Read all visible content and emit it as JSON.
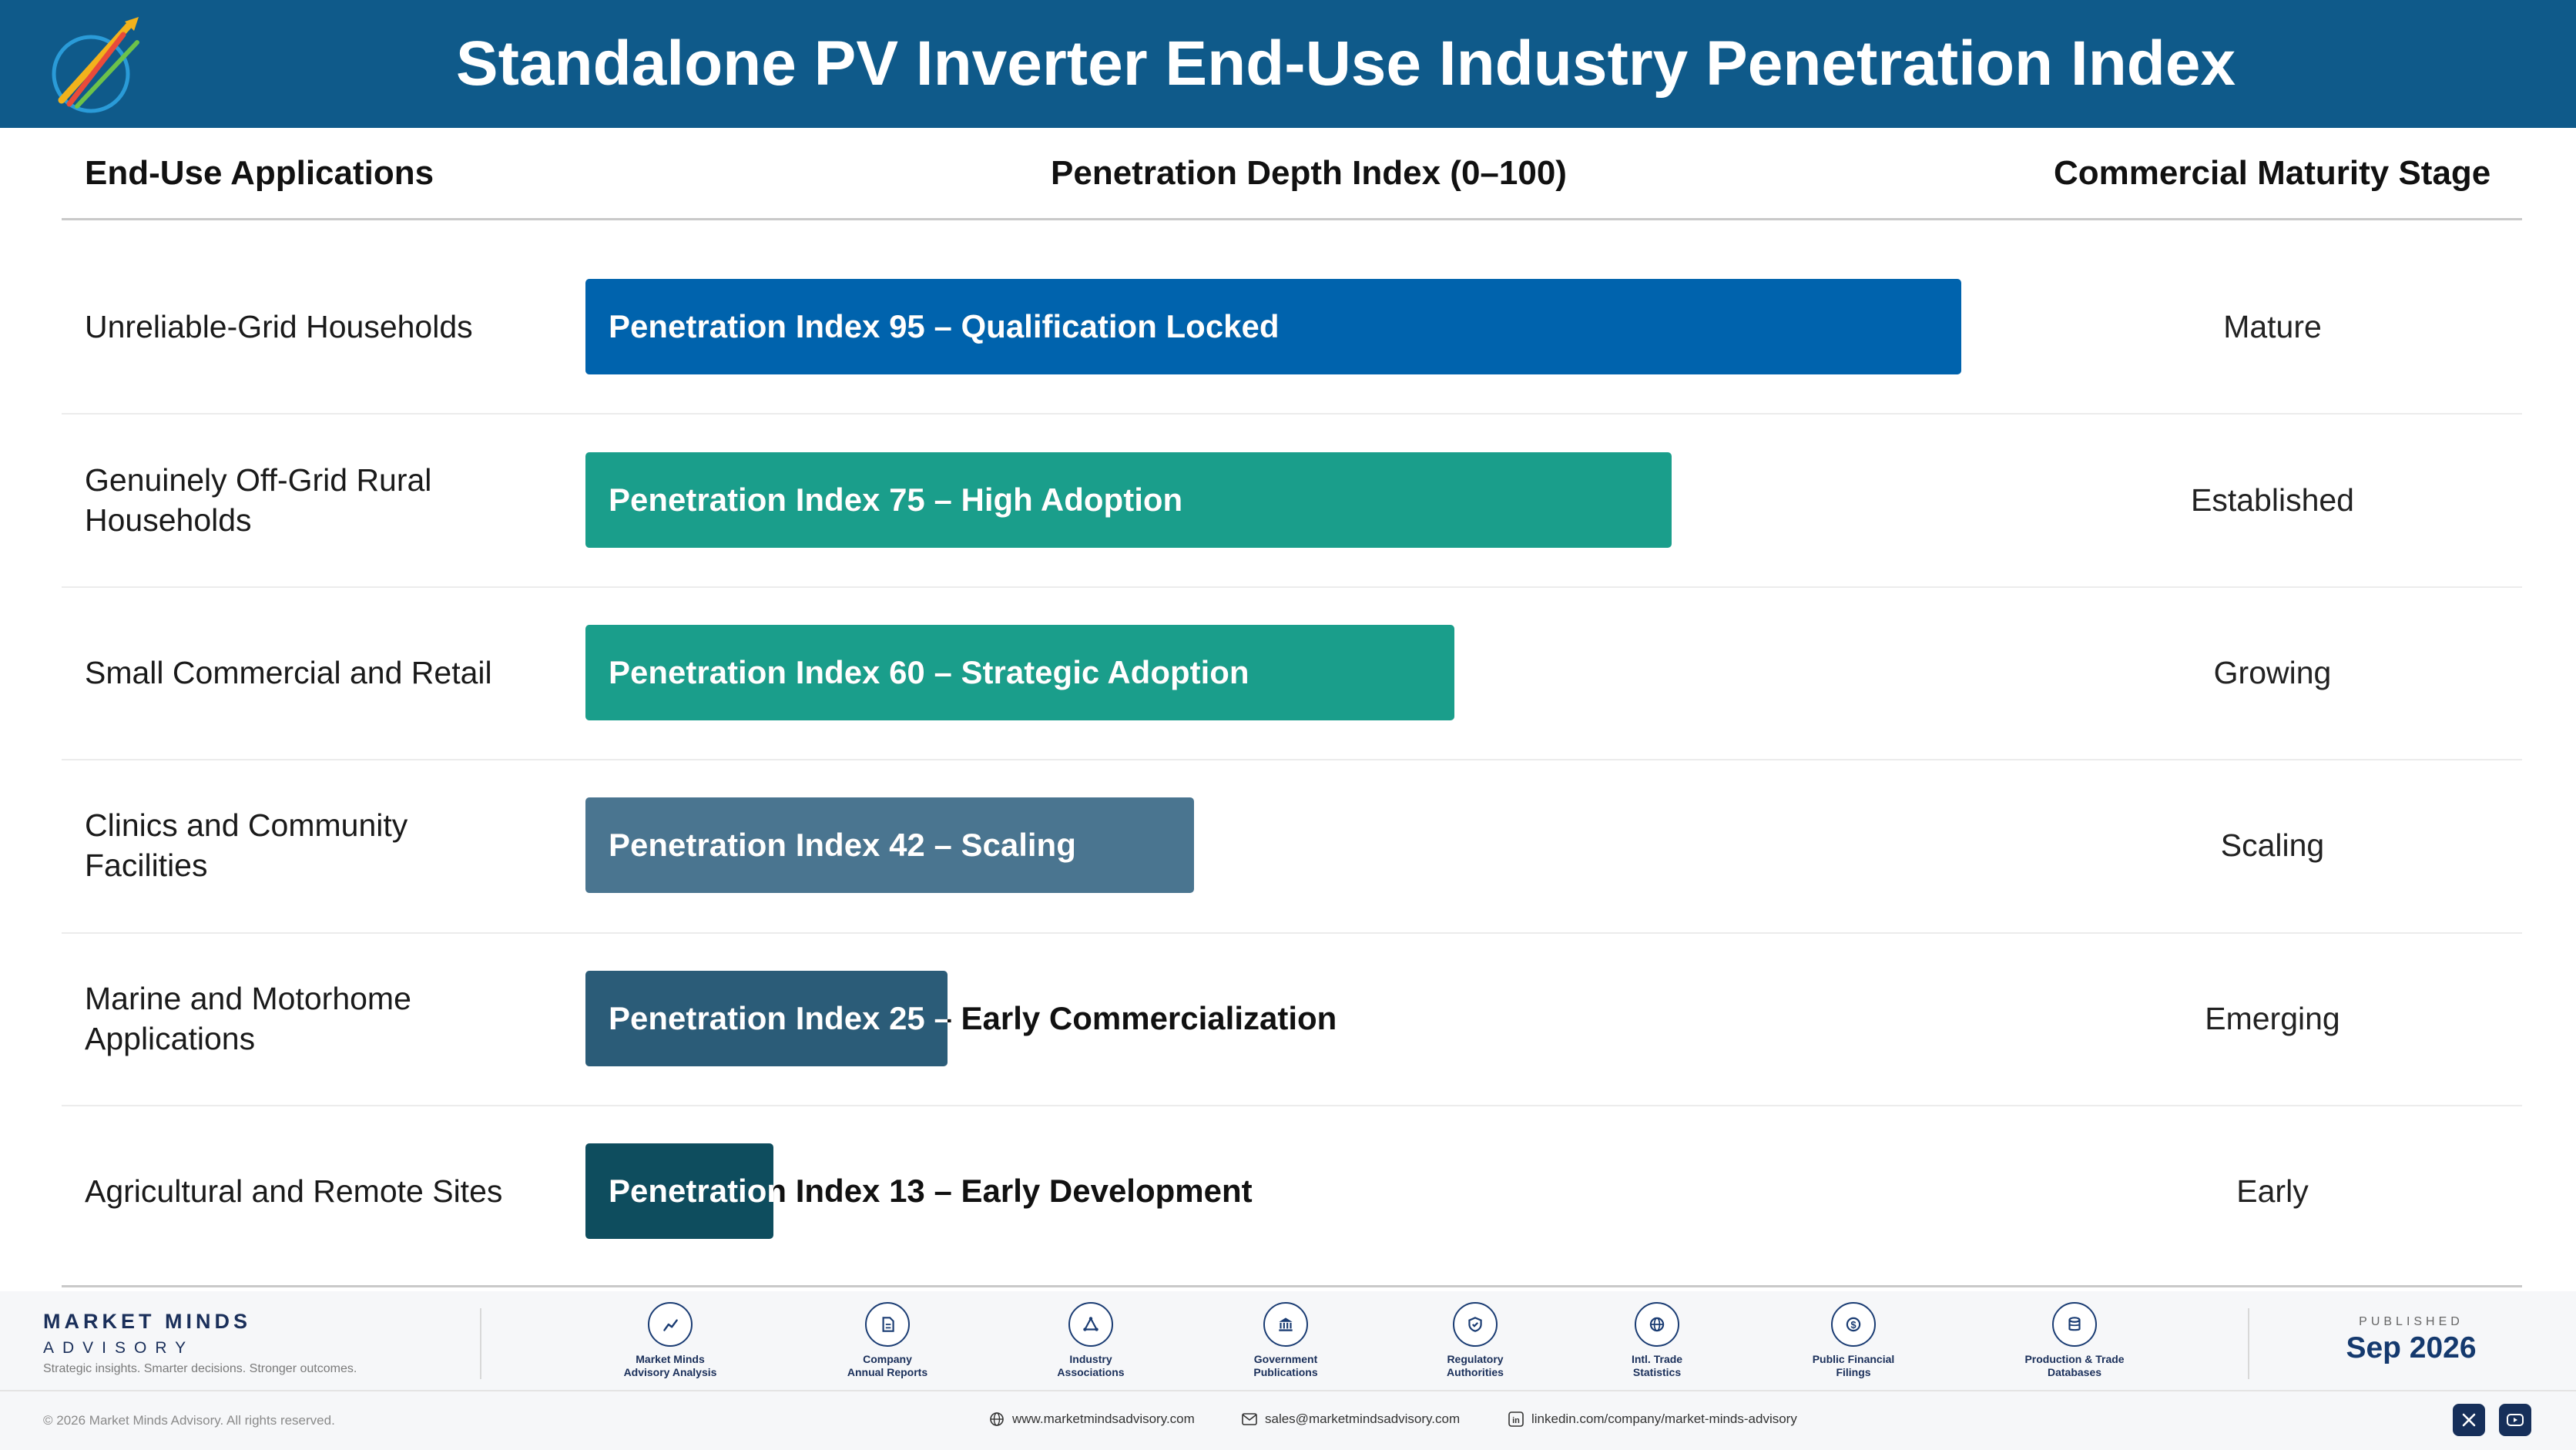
{
  "header": {
    "title": "Standalone PV Inverter End-Use Industry Penetration Index",
    "logo_icon": "market-minds-logo-icon"
  },
  "columns": {
    "applications": "End-Use Applications",
    "index": "Penetration Depth Index (0–100)",
    "stage": "Commercial Maturity Stage"
  },
  "chart_data": {
    "type": "bar",
    "orientation": "horizontal",
    "title": "Standalone PV Inverter End-Use Industry Penetration Index",
    "xlabel": "Penetration Depth Index (0–100)",
    "xlim": [
      0,
      100
    ],
    "categories": [
      "Unreliable-Grid Households",
      "Genuinely Off-Grid Rural Households",
      "Small Commercial and Retail",
      "Clinics and Community Facilities",
      "Marine and Motorhome Applications",
      "Agricultural and Remote Sites"
    ],
    "values": [
      95,
      75,
      60,
      42,
      25,
      13
    ],
    "bar_labels": [
      "Penetration Index 95 – Qualification Locked",
      "Penetration Index 75 – High Adoption",
      "Penetration Index 60 – Strategic Adoption",
      "Penetration Index 42 – Scaling",
      "Penetration Index 25 – Early Commercialization",
      "Penetration Index 13 – Early Development"
    ],
    "stages": [
      "Mature",
      "Established",
      "Growing",
      "Scaling",
      "Emerging",
      "Early"
    ],
    "colors": [
      "#0063ad",
      "#1a9e8b",
      "#1a9e8b",
      "#4a7590",
      "#2b5c78",
      "#0e4d5e"
    ]
  },
  "footer": {
    "brand_name": "MARKET MINDS",
    "brand_sub": "ADVISORY",
    "brand_tagline": "Strategic insights. Smarter decisions. Stronger outcomes.",
    "sources": [
      {
        "icon": "trend-chart-icon",
        "line1": "Market Minds",
        "line2": "Advisory Analysis"
      },
      {
        "icon": "document-icon",
        "line1": "Company",
        "line2": "Annual Reports"
      },
      {
        "icon": "network-icon",
        "line1": "Industry",
        "line2": "Associations"
      },
      {
        "icon": "government-building-icon",
        "line1": "Government",
        "line2": "Publications"
      },
      {
        "icon": "shield-check-icon",
        "line1": "Regulatory",
        "line2": "Authorities"
      },
      {
        "icon": "globe-icon",
        "line1": "Intl. Trade",
        "line2": "Statistics"
      },
      {
        "icon": "dollar-coin-icon",
        "line1": "Public Financial",
        "line2": "Filings"
      },
      {
        "icon": "database-icon",
        "line1": "Production & Trade",
        "line2": "Databases"
      }
    ],
    "published_label": "PUBLISHED",
    "published_date": "Sep 2026",
    "copyright": "© 2026 Market Minds Advisory. All rights reserved.",
    "website": "www.marketmindsadvisory.com",
    "email": "sales@marketmindsadvisory.com",
    "linkedin": "linkedin.com/company/market-minds-advisory"
  }
}
